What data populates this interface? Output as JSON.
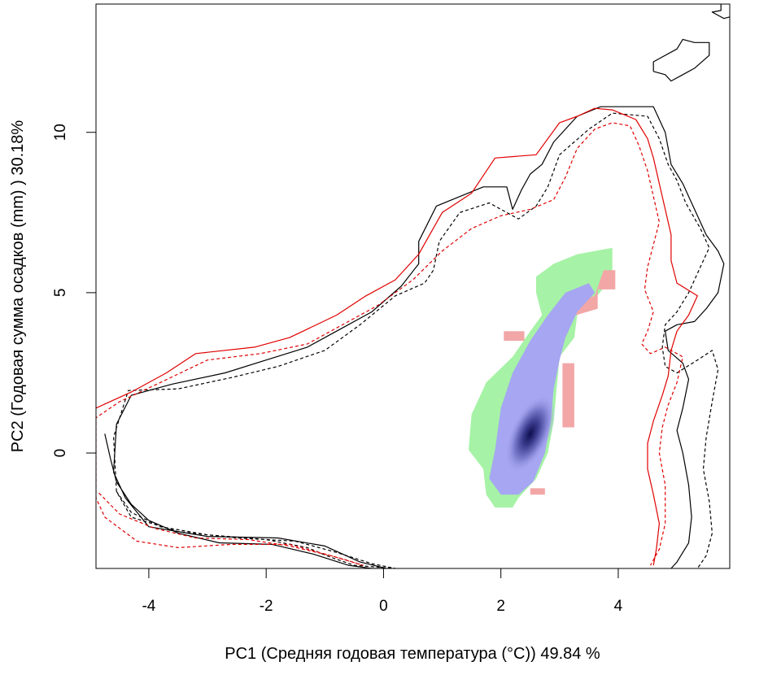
{
  "chart_data": {
    "type": "heatmap",
    "xlabel": "PC1 (Средняя годовая температура (°C)) 49.84 %",
    "ylabel": "PC2 (Годовая сумма осадков  (mm) ) 30.18%",
    "xlim": [
      -4.9,
      5.9
    ],
    "ylim": [
      -3.6,
      14
    ],
    "x_ticks": [
      -4,
      -2,
      0,
      2,
      4
    ],
    "y_ticks": [
      0,
      5,
      10
    ],
    "x_tick_labels": [
      "-4",
      "-2",
      "0",
      "2",
      "4"
    ],
    "y_tick_labels": [
      "0",
      "5",
      "10"
    ],
    "grid": false,
    "colors": {
      "overlap": "#a6a6f2",
      "density_low": "#a6a6f2",
      "density_high": "#0d0d4d",
      "green_only": "#a6f2a6",
      "red_only": "#f2a6a6",
      "contour_black": "#000000",
      "contour_red": "#e00000"
    },
    "regions": [
      {
        "name": "green",
        "color": "#a6f2a6",
        "polygon": [
          [
            1.75,
            -1.3
          ],
          [
            1.7,
            -0.5
          ],
          [
            1.45,
            0.1
          ],
          [
            1.5,
            1.2
          ],
          [
            1.75,
            2.2
          ],
          [
            2.2,
            3.0
          ],
          [
            2.5,
            3.8
          ],
          [
            2.7,
            4.3
          ],
          [
            2.6,
            5.0
          ],
          [
            2.6,
            5.5
          ],
          [
            2.9,
            5.9
          ],
          [
            3.3,
            6.2
          ],
          [
            3.9,
            6.4
          ],
          [
            3.9,
            5.5
          ],
          [
            3.6,
            4.8
          ],
          [
            3.3,
            4.3
          ],
          [
            3.25,
            3.6
          ],
          [
            3.0,
            3.0
          ],
          [
            2.95,
            2.0
          ],
          [
            2.9,
            1.0
          ],
          [
            2.8,
            0.0
          ],
          [
            2.6,
            -0.8
          ],
          [
            2.3,
            -1.4
          ],
          [
            2.2,
            -1.7
          ],
          [
            1.9,
            -1.7
          ]
        ]
      },
      {
        "name": "red_top",
        "color": "#f2a6a6",
        "polygon": [
          [
            3.75,
            5.7
          ],
          [
            3.95,
            5.7
          ],
          [
            3.95,
            5.1
          ],
          [
            3.65,
            5.1
          ],
          [
            3.65,
            4.5
          ],
          [
            3.1,
            4.2
          ],
          [
            3.1,
            4.6
          ],
          [
            3.6,
            4.9
          ]
        ]
      },
      {
        "name": "red_left",
        "color": "#f2a6a6",
        "polygon": [
          [
            2.05,
            3.8
          ],
          [
            2.4,
            3.8
          ],
          [
            2.4,
            3.5
          ],
          [
            2.05,
            3.5
          ]
        ]
      },
      {
        "name": "red_right",
        "color": "#f2a6a6",
        "polygon": [
          [
            3.05,
            2.8
          ],
          [
            3.25,
            2.8
          ],
          [
            3.25,
            0.8
          ],
          [
            3.05,
            0.8
          ]
        ]
      },
      {
        "name": "red_lower",
        "color": "#f2a6a6",
        "polygon": [
          [
            2.5,
            -1.1
          ],
          [
            2.75,
            -1.1
          ],
          [
            2.75,
            -1.3
          ],
          [
            2.5,
            -1.3
          ]
        ]
      },
      {
        "name": "blue",
        "color": "#a6a6f2",
        "polygon": [
          [
            1.8,
            -0.8
          ],
          [
            1.9,
            0.1
          ],
          [
            2.0,
            1.4
          ],
          [
            2.2,
            2.5
          ],
          [
            2.5,
            3.5
          ],
          [
            2.8,
            4.3
          ],
          [
            3.1,
            5.0
          ],
          [
            3.5,
            5.3
          ],
          [
            3.6,
            5.0
          ],
          [
            3.3,
            4.4
          ],
          [
            3.1,
            3.6
          ],
          [
            3.0,
            2.9
          ],
          [
            2.9,
            2.0
          ],
          [
            2.85,
            1.0
          ],
          [
            2.75,
            0.0
          ],
          [
            2.55,
            -0.9
          ],
          [
            2.3,
            -1.3
          ],
          [
            2.0,
            -1.3
          ]
        ]
      }
    ],
    "density_peak": {
      "x": 2.5,
      "y": 0.6
    },
    "series": [
      {
        "color": "#000000",
        "dash": "solid",
        "points": [
          [
            -4.75,
            0.6
          ],
          [
            -4.65,
            -0.2
          ],
          [
            -4.55,
            -0.9
          ],
          [
            -4.3,
            -1.6
          ],
          [
            -4.0,
            -2.1
          ],
          [
            -3.5,
            -2.5
          ],
          [
            -2.8,
            -2.8
          ],
          [
            -1.9,
            -2.85
          ],
          [
            -1.2,
            -3.15
          ],
          [
            -0.6,
            -3.5
          ],
          [
            -0.2,
            -3.6
          ],
          [
            0.05,
            -3.6
          ],
          [
            -0.4,
            -3.4
          ],
          [
            -1.0,
            -2.9
          ],
          [
            -1.8,
            -2.65
          ],
          [
            -3.0,
            -2.6
          ],
          [
            -4.0,
            -2.3
          ],
          [
            -4.4,
            -1.4
          ],
          [
            -4.6,
            -0.6
          ],
          [
            -4.55,
            0.9
          ],
          [
            -4.3,
            1.8
          ],
          [
            -3.6,
            2.15
          ],
          [
            -2.7,
            2.5
          ],
          [
            -2.0,
            2.9
          ],
          [
            -1.3,
            3.3
          ],
          [
            -0.8,
            3.8
          ],
          [
            -0.2,
            4.4
          ],
          [
            0.3,
            5.2
          ],
          [
            0.6,
            5.9
          ],
          [
            0.6,
            6.6
          ],
          [
            0.9,
            7.7
          ],
          [
            1.7,
            8.3
          ],
          [
            2.1,
            8.3
          ],
          [
            2.2,
            7.6
          ],
          [
            2.35,
            8.2
          ],
          [
            2.5,
            8.7
          ],
          [
            2.7,
            9.0
          ],
          [
            2.9,
            9.7
          ],
          [
            3.3,
            10.5
          ],
          [
            3.7,
            10.8
          ],
          [
            4.6,
            10.8
          ],
          [
            4.8,
            10.0
          ],
          [
            4.9,
            9.0
          ],
          [
            5.1,
            8.4
          ],
          [
            5.3,
            7.6
          ],
          [
            5.5,
            6.8
          ],
          [
            5.7,
            6.3
          ],
          [
            5.8,
            5.9
          ],
          [
            5.7,
            5.0
          ],
          [
            5.5,
            4.5
          ],
          [
            5.3,
            4.1
          ],
          [
            5.0,
            4.0
          ],
          [
            4.8,
            3.8
          ],
          [
            4.85,
            3.2
          ],
          [
            5.1,
            2.8
          ],
          [
            5.2,
            2.3
          ],
          [
            5.1,
            1.4
          ],
          [
            5.0,
            0.7
          ],
          [
            5.1,
            0.0
          ],
          [
            5.2,
            -1.0
          ],
          [
            5.25,
            -2.0
          ],
          [
            5.2,
            -2.8
          ],
          [
            5.0,
            -3.4
          ],
          [
            4.9,
            -3.6
          ]
        ]
      },
      {
        "color": "#000000",
        "dash": "dashed",
        "points": [
          [
            -4.55,
            -1.2
          ],
          [
            -4.3,
            -1.85
          ],
          [
            -3.8,
            -2.3
          ],
          [
            -3.0,
            -2.55
          ],
          [
            -2.0,
            -2.7
          ],
          [
            -1.3,
            -2.95
          ],
          [
            -0.9,
            -3.25
          ],
          [
            -0.5,
            -3.5
          ],
          [
            0.2,
            -3.6
          ],
          [
            -0.2,
            -3.45
          ],
          [
            -0.8,
            -3.1
          ],
          [
            -1.5,
            -2.75
          ],
          [
            -2.5,
            -2.65
          ],
          [
            -3.5,
            -2.45
          ],
          [
            -4.3,
            -2.0
          ],
          [
            -4.55,
            -1.2
          ],
          [
            -4.6,
            0.5
          ],
          [
            -4.35,
            1.95
          ],
          [
            -3.5,
            2.0
          ],
          [
            -2.6,
            2.35
          ],
          [
            -1.8,
            2.7
          ],
          [
            -1.0,
            3.2
          ],
          [
            -0.4,
            4.0
          ],
          [
            0.2,
            4.9
          ],
          [
            0.7,
            5.3
          ],
          [
            0.85,
            5.7
          ],
          [
            0.95,
            6.6
          ],
          [
            1.3,
            7.5
          ],
          [
            1.8,
            7.8
          ],
          [
            2.3,
            7.3
          ],
          [
            2.6,
            7.7
          ],
          [
            2.8,
            8.3
          ],
          [
            3.0,
            9.3
          ],
          [
            3.5,
            10.1
          ],
          [
            3.9,
            10.6
          ],
          [
            4.5,
            10.5
          ],
          [
            4.7,
            9.8
          ],
          [
            4.85,
            9.0
          ],
          [
            5.0,
            8.5
          ],
          [
            5.15,
            7.8
          ],
          [
            5.4,
            7.0
          ],
          [
            5.55,
            6.4
          ],
          [
            5.4,
            5.8
          ],
          [
            5.2,
            5.0
          ],
          [
            5.0,
            4.4
          ],
          [
            4.8,
            4.0
          ],
          [
            4.75,
            3.3
          ],
          [
            4.8,
            2.7
          ],
          [
            5.0,
            2.5
          ],
          [
            5.35,
            2.9
          ],
          [
            5.6,
            3.2
          ],
          [
            5.7,
            2.6
          ],
          [
            5.6,
            1.6
          ],
          [
            5.5,
            0.5
          ],
          [
            5.45,
            -0.5
          ],
          [
            5.55,
            -1.5
          ],
          [
            5.6,
            -2.5
          ],
          [
            5.5,
            -3.2
          ],
          [
            5.35,
            -3.6
          ]
        ]
      },
      {
        "color": "#e00000",
        "dash": "solid",
        "points": [
          [
            -4.9,
            1.4
          ],
          [
            -4.3,
            1.9
          ],
          [
            -3.7,
            2.5
          ],
          [
            -3.2,
            3.1
          ],
          [
            -2.2,
            3.3
          ],
          [
            -1.6,
            3.6
          ],
          [
            -0.8,
            4.3
          ],
          [
            -0.3,
            4.9
          ],
          [
            0.2,
            5.4
          ],
          [
            0.6,
            6.2
          ],
          [
            1.0,
            7.5
          ],
          [
            1.5,
            8.1
          ],
          [
            1.9,
            9.2
          ],
          [
            2.6,
            9.3
          ],
          [
            3.0,
            10.3
          ],
          [
            3.3,
            10.5
          ],
          [
            3.6,
            10.75
          ],
          [
            3.9,
            10.7
          ],
          [
            4.3,
            10.4
          ],
          [
            4.5,
            9.8
          ],
          [
            4.6,
            9.2
          ],
          [
            4.7,
            8.4
          ],
          [
            4.8,
            7.6
          ],
          [
            4.9,
            6.8
          ],
          [
            4.9,
            6.0
          ],
          [
            5.0,
            5.3
          ],
          [
            5.35,
            4.9
          ],
          [
            5.2,
            4.3
          ],
          [
            5.0,
            3.8
          ],
          [
            4.9,
            3.2
          ],
          [
            4.85,
            2.4
          ],
          [
            4.75,
            1.8
          ],
          [
            4.6,
            1.0
          ],
          [
            4.5,
            0.3
          ],
          [
            4.5,
            -0.5
          ],
          [
            4.6,
            -1.3
          ],
          [
            4.7,
            -2.2
          ],
          [
            4.65,
            -3.0
          ],
          [
            4.6,
            -3.5
          ]
        ]
      },
      {
        "color": "#e00000",
        "dash": "dashed",
        "points": [
          [
            -4.85,
            -1.25
          ],
          [
            -4.5,
            -1.9
          ],
          [
            -3.9,
            -2.35
          ],
          [
            -3.2,
            -2.65
          ],
          [
            -2.3,
            -2.7
          ],
          [
            -1.6,
            -2.9
          ],
          [
            -0.9,
            -3.2
          ],
          [
            -0.35,
            -3.5
          ],
          [
            -0.7,
            -3.3
          ],
          [
            -1.6,
            -2.85
          ],
          [
            -2.6,
            -2.85
          ],
          [
            -3.5,
            -2.95
          ],
          [
            -4.2,
            -2.75
          ],
          [
            -4.75,
            -2.0
          ],
          [
            -4.9,
            -1.4
          ],
          [
            -4.9,
            1.1
          ],
          [
            -4.5,
            1.6
          ],
          [
            -3.8,
            2.2
          ],
          [
            -3.0,
            2.9
          ],
          [
            -2.1,
            3.1
          ],
          [
            -1.3,
            3.4
          ],
          [
            -0.6,
            4.1
          ],
          [
            -0.1,
            4.6
          ],
          [
            0.5,
            5.4
          ],
          [
            1.0,
            6.3
          ],
          [
            1.5,
            7.0
          ],
          [
            2.0,
            7.4
          ],
          [
            2.5,
            7.6
          ],
          [
            2.9,
            7.9
          ],
          [
            3.1,
            8.6
          ],
          [
            3.3,
            9.5
          ],
          [
            3.6,
            10.1
          ],
          [
            3.9,
            10.3
          ],
          [
            4.2,
            10.2
          ],
          [
            4.35,
            9.6
          ],
          [
            4.5,
            8.8
          ],
          [
            4.6,
            8.0
          ],
          [
            4.7,
            7.2
          ],
          [
            4.6,
            6.5
          ],
          [
            4.5,
            5.8
          ],
          [
            4.45,
            5.1
          ],
          [
            4.6,
            4.4
          ],
          [
            4.5,
            3.8
          ],
          [
            4.4,
            3.4
          ],
          [
            4.55,
            3.1
          ],
          [
            4.8,
            3.3
          ],
          [
            5.1,
            3.0
          ],
          [
            5.0,
            2.2
          ],
          [
            4.85,
            1.5
          ],
          [
            4.75,
            0.8
          ],
          [
            4.7,
            0.0
          ],
          [
            4.8,
            -1.0
          ],
          [
            4.8,
            -2.2
          ],
          [
            4.7,
            -3.0
          ],
          [
            4.55,
            -3.5
          ]
        ]
      },
      {
        "color": "#000000",
        "dash": "solid",
        "points": [
          [
            4.6,
            11.9
          ],
          [
            4.6,
            12.2
          ],
          [
            5.0,
            12.6
          ],
          [
            5.1,
            12.9
          ],
          [
            5.3,
            12.8
          ],
          [
            5.55,
            12.8
          ],
          [
            5.55,
            12.4
          ],
          [
            5.3,
            12.0
          ],
          [
            5.1,
            11.8
          ],
          [
            4.9,
            11.6
          ],
          [
            4.8,
            11.8
          ],
          [
            4.6,
            11.9
          ]
        ]
      },
      {
        "color": "#000000",
        "dash": "solid",
        "points": [
          [
            5.75,
            14.0
          ],
          [
            5.75,
            13.8
          ],
          [
            5.6,
            13.75
          ],
          [
            5.8,
            13.55
          ],
          [
            5.9,
            13.6
          ]
        ]
      }
    ]
  }
}
